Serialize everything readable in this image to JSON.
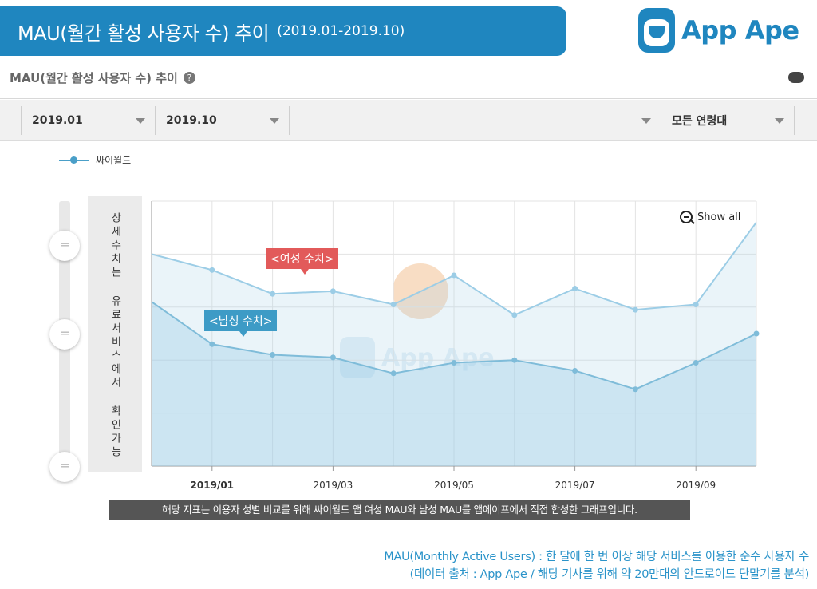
{
  "header": {
    "title": "MAU(월간 활성 사용자 수) 추이",
    "period": "(2019.01-2019.10)"
  },
  "brand": {
    "name": "App Ape",
    "color": "#1f86bf"
  },
  "section": {
    "title": "MAU(월간 활성 사용자 수) 추이",
    "help_icon": "help-icon",
    "download_icon": "cloud-download-icon"
  },
  "filters": {
    "start": "2019.01",
    "end": "2019.10",
    "age": "모든 연령대"
  },
  "legend": {
    "series_name": "싸이월드"
  },
  "side_panel": {
    "text": "상세수치는 유료서비스에서 확인가능"
  },
  "annotations": {
    "female": "<여성 수치>",
    "male": "<남성 수치>"
  },
  "controls": {
    "show_all": "Show all"
  },
  "note": "해당 지표는 이용자 성별 비교를 위해 싸이월드 앱 여성 MAU와 남성 MAU를 앱에이프에서 직접 합성한 그래프입니다.",
  "footer": {
    "line1": "MAU(Monthly Active Users) : 한 달에 한 번 이상 해당 서비스를 이용한 순수 사용자 수",
    "line2": "(데이터 출처 : App Ape / 해당 기사를 위해 약 20만대의 안드로이드 단말기를 분석)"
  },
  "chart_data": {
    "type": "line",
    "x": [
      "2018.12",
      "2019.01",
      "2019.02",
      "2019.03",
      "2019.04",
      "2019.05",
      "2019.06",
      "2019.07",
      "2019.08",
      "2019.09",
      "2019.10"
    ],
    "xticks": [
      "2019/01",
      "2019/03",
      "2019/05",
      "2019/07",
      "2019/09"
    ],
    "ylim": [
      0,
      5
    ],
    "series": [
      {
        "values": [
          4.0,
          3.7,
          3.25,
          3.3,
          3.05,
          3.6,
          2.85,
          3.35,
          2.95,
          3.05,
          4.6
        ],
        "color": "#9ccde6"
      },
      {
        "values": [
          3.1,
          2.3,
          2.1,
          2.05,
          1.75,
          1.95,
          2.0,
          1.8,
          1.45,
          1.95,
          2.5
        ],
        "color": "#7fbcd9"
      }
    ],
    "grid": true,
    "legend_position": "top-left"
  }
}
